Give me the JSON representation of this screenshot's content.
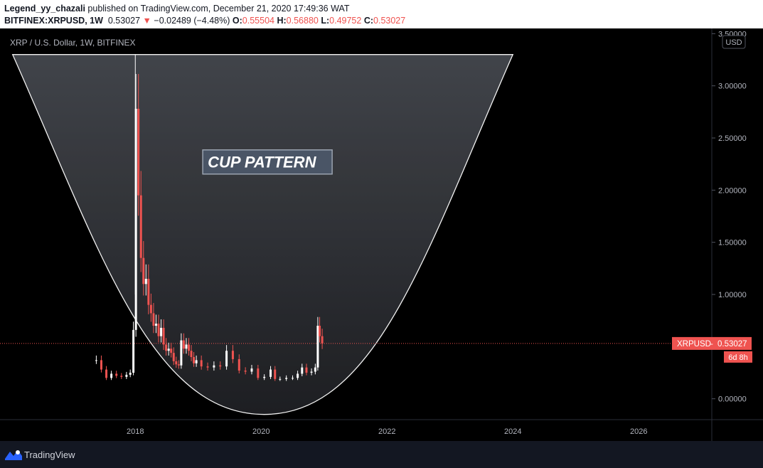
{
  "header": {
    "author": "Legend_yy_chazali",
    "published": " published on TradingView.com, December 21, 2020 17:49:36 WAT",
    "symbol": "BITFINEX:XRPUSD, 1W",
    "last": "0.53027",
    "change": "−0.02489 (−4.48%)",
    "o_label": "O:",
    "o_value": "0.55504",
    "h_label": "H:",
    "h_value": "0.56880",
    "l_label": "L:",
    "l_value": "0.49752",
    "c_label": "C:",
    "c_value": "0.53027"
  },
  "footer": {
    "brand": "TradingView"
  },
  "colors": {
    "background": "#000000",
    "candle_up": "#ffffff",
    "candle_down": "#ef5350",
    "cup_fill": "#3e4045",
    "price_line": "#ef5350"
  },
  "chart_data": {
    "type": "candlestick",
    "title": "XRP / U.S. Dollar, 1W, BITFINEX",
    "currency_label": "USD",
    "ylim": [
      -0.2,
      3.55
    ],
    "xlim": [
      2015.85,
      2027.15
    ],
    "y_ticks": [
      "0.00000",
      "0.50000",
      "1.00000",
      "1.50000",
      "2.00000",
      "2.50000",
      "3.00000",
      "3.50000"
    ],
    "x_ticks": [
      "2018",
      "2020",
      "2022",
      "2024",
      "2026"
    ],
    "current_price": {
      "label": "XRPUSD",
      "value": "0.53027",
      "countdown": "6d 8h",
      "y": 0.53027
    },
    "annotation": {
      "text": "CUP PATTERN",
      "x": 2020.1,
      "y": 2.27
    },
    "cup": {
      "left_x": 2016.05,
      "right_x": 2024.0,
      "top_y": 3.3,
      "bottom_x": 2020.05,
      "bottom_y": -0.15
    },
    "series": [
      {
        "name": "XRPUSD",
        "points": [
          [
            2017.38,
            0.37
          ],
          [
            2017.46,
            0.28
          ],
          [
            2017.54,
            0.2
          ],
          [
            2017.62,
            0.24
          ],
          [
            2017.7,
            0.22
          ],
          [
            2017.78,
            0.21
          ],
          [
            2017.86,
            0.23
          ],
          [
            2017.92,
            0.25
          ],
          [
            2017.97,
            0.66
          ],
          [
            2018.01,
            2.78
          ],
          [
            2018.05,
            1.95
          ],
          [
            2018.09,
            1.35
          ],
          [
            2018.13,
            1.1
          ],
          [
            2018.17,
            1.15
          ],
          [
            2018.21,
            0.9
          ],
          [
            2018.25,
            0.82
          ],
          [
            2018.29,
            0.7
          ],
          [
            2018.33,
            0.72
          ],
          [
            2018.37,
            0.6
          ],
          [
            2018.41,
            0.68
          ],
          [
            2018.45,
            0.52
          ],
          [
            2018.49,
            0.46
          ],
          [
            2018.53,
            0.48
          ],
          [
            2018.57,
            0.44
          ],
          [
            2018.61,
            0.36
          ],
          [
            2018.65,
            0.33
          ],
          [
            2018.69,
            0.32
          ],
          [
            2018.73,
            0.56
          ],
          [
            2018.77,
            0.48
          ],
          [
            2018.81,
            0.52
          ],
          [
            2018.85,
            0.46
          ],
          [
            2018.89,
            0.4
          ],
          [
            2018.93,
            0.34
          ],
          [
            2018.97,
            0.37
          ],
          [
            2019.05,
            0.31
          ],
          [
            2019.15,
            0.3
          ],
          [
            2019.25,
            0.32
          ],
          [
            2019.35,
            0.31
          ],
          [
            2019.45,
            0.46
          ],
          [
            2019.55,
            0.38
          ],
          [
            2019.65,
            0.27
          ],
          [
            2019.75,
            0.26
          ],
          [
            2019.85,
            0.29
          ],
          [
            2019.95,
            0.2
          ],
          [
            2020.05,
            0.21
          ],
          [
            2020.15,
            0.28
          ],
          [
            2020.22,
            0.19
          ],
          [
            2020.3,
            0.19
          ],
          [
            2020.4,
            0.2
          ],
          [
            2020.5,
            0.2
          ],
          [
            2020.58,
            0.24
          ],
          [
            2020.65,
            0.3
          ],
          [
            2020.72,
            0.25
          ],
          [
            2020.8,
            0.26
          ],
          [
            2020.86,
            0.3
          ],
          [
            2020.9,
            0.7
          ],
          [
            2020.93,
            0.6
          ],
          [
            2020.97,
            0.53
          ]
        ]
      }
    ]
  }
}
